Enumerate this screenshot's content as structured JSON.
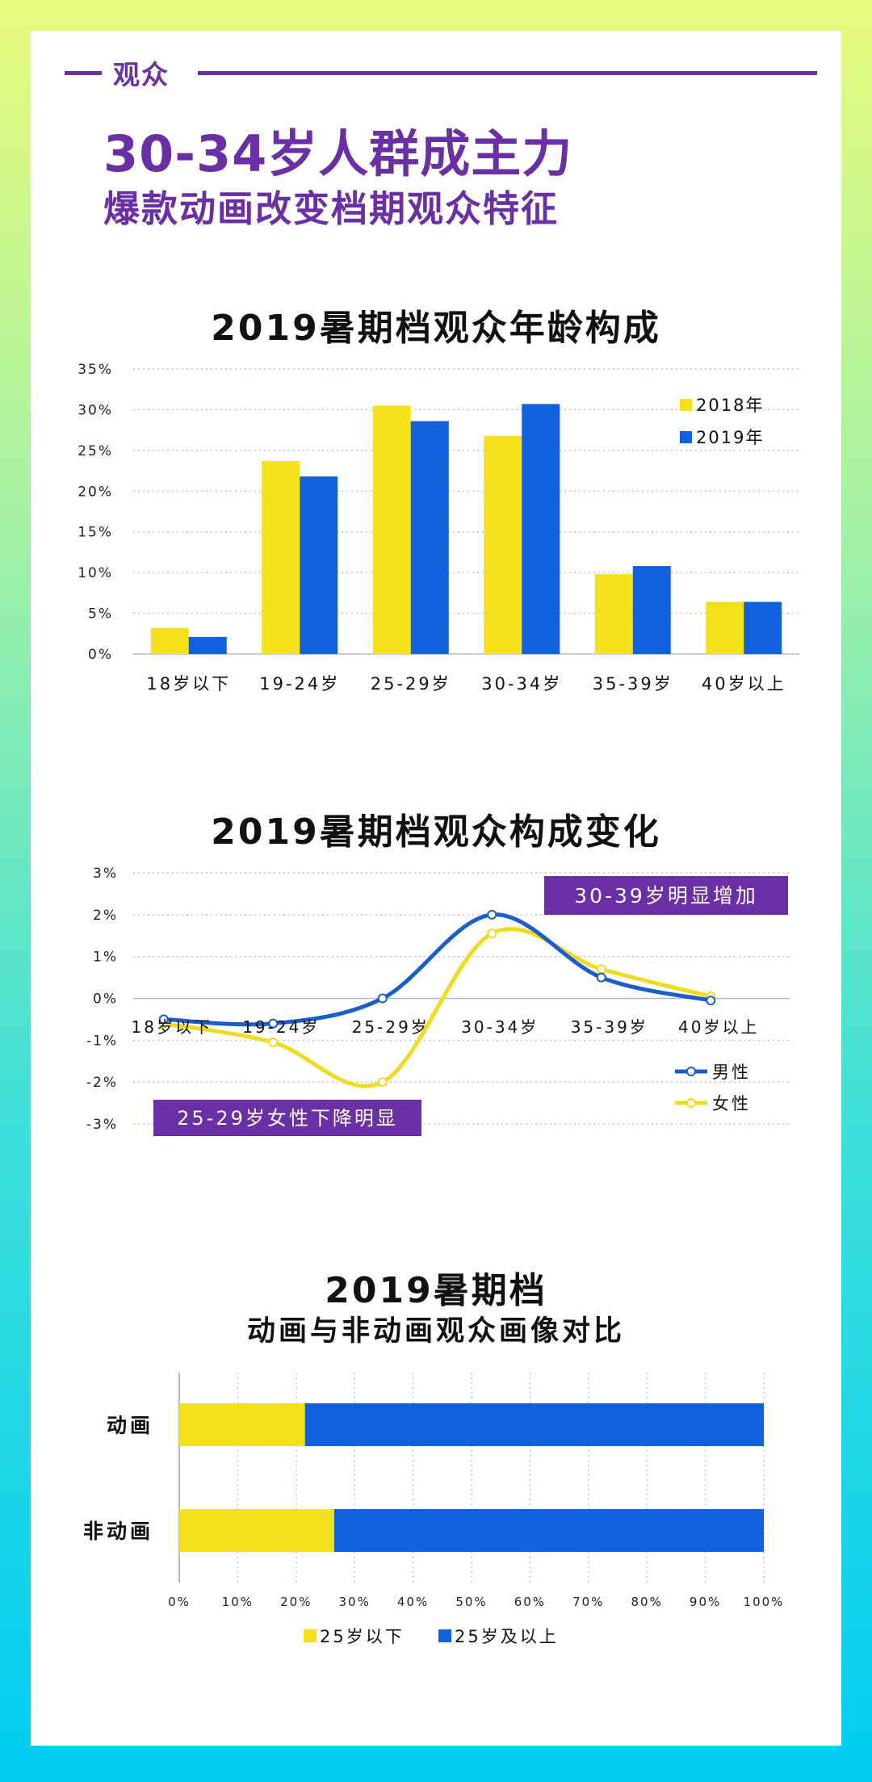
{
  "section": {
    "label": "观众"
  },
  "headline": "30-34岁人群成主力",
  "subheadline": "爆款动画改变档期观众特征",
  "colors": {
    "yellow": "#f5e11b",
    "blue": "#1160dc",
    "purple": "#6a2fa5",
    "male": "#1a5fc9",
    "female": "#f0dc1e"
  },
  "chart_data": [
    {
      "type": "bar",
      "title": "2019暑期档观众年龄构成",
      "categories": [
        "18岁以下",
        "19-24岁",
        "25-29岁",
        "30-34岁",
        "35-39岁",
        "40岁以上"
      ],
      "series": [
        {
          "name": "2018年",
          "values": [
            3.2,
            23.7,
            30.5,
            26.8,
            9.8,
            6.4
          ]
        },
        {
          "name": "2019年",
          "values": [
            2.1,
            21.8,
            28.6,
            30.7,
            10.8,
            6.4
          ]
        }
      ],
      "ylim": [
        0,
        35
      ],
      "yticks": [
        "0%",
        "5%",
        "10%",
        "15%",
        "20%",
        "25%",
        "30%",
        "35%"
      ],
      "grid": true,
      "legend": "top-right"
    },
    {
      "type": "line",
      "title": "2019暑期档观众构成变化",
      "categories": [
        "18岁以下",
        "19-24岁",
        "25-29岁",
        "30-34岁",
        "35-39岁",
        "40岁以上"
      ],
      "series": [
        {
          "name": "男性",
          "values": [
            -0.5,
            -0.6,
            0.0,
            2.0,
            0.5,
            -0.05
          ]
        },
        {
          "name": "女性",
          "values": [
            -0.6,
            -1.05,
            -2.0,
            1.55,
            0.7,
            0.05
          ]
        }
      ],
      "ylim": [
        -3,
        3
      ],
      "yticks": [
        "3%",
        "2%",
        "1%",
        "0%",
        "-1%",
        "-2%",
        "-3%"
      ],
      "annotations": [
        "30-39岁明显增加",
        "25-29岁女性下降明显"
      ],
      "grid": true,
      "legend": "bottom-right"
    },
    {
      "type": "bar",
      "orientation": "horizontal-stacked",
      "title": "2019暑期档",
      "subtitle": "动画与非动画观众画像对比",
      "categories": [
        "动画",
        "非动画"
      ],
      "series": [
        {
          "name": "25岁以下",
          "values": [
            21.5,
            26.5
          ]
        },
        {
          "name": "25岁及以上",
          "values": [
            78.5,
            73.5
          ]
        }
      ],
      "xlim": [
        0,
        100
      ],
      "xticks": [
        "0%",
        "10%",
        "20%",
        "30%",
        "40%",
        "50%",
        "60%",
        "70%",
        "80%",
        "90%",
        "100%"
      ],
      "grid": true,
      "legend": "bottom"
    }
  ]
}
